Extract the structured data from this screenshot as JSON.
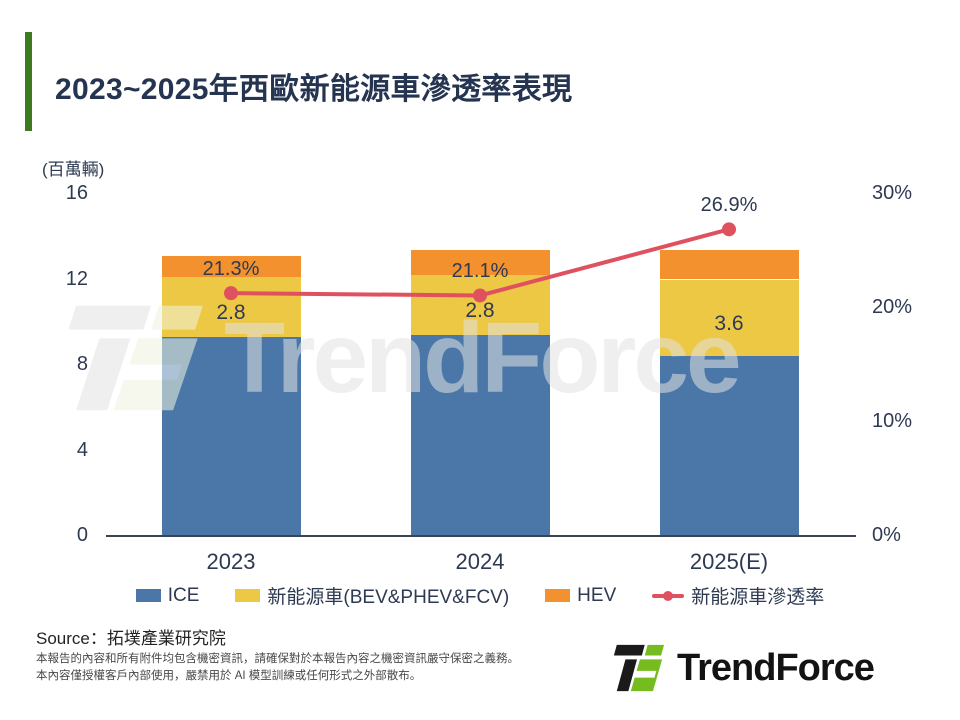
{
  "header": {
    "title": "2023~2025年西歐新能源車滲透率表現"
  },
  "chart_data": {
    "type": "bar",
    "subtype": "stacked-bar-with-line",
    "title": "2023~2025年西歐新能源車滲透率表現",
    "unit_label": "(百萬輛)",
    "categories": [
      "2023",
      "2024",
      "2025(E)"
    ],
    "series": [
      {
        "name": "ICE",
        "type": "bar",
        "color": "#4a77a8",
        "values": [
          9.3,
          9.4,
          8.4
        ]
      },
      {
        "name": "新能源車(BEV&PHEV&FCV)",
        "type": "bar",
        "color": "#edc844",
        "values": [
          2.8,
          2.8,
          3.6
        ],
        "data_labels": [
          "2.8",
          "2.8",
          "3.6"
        ]
      },
      {
        "name": "HEV",
        "type": "bar",
        "color": "#f2912d",
        "values": [
          1.0,
          1.2,
          1.4
        ]
      },
      {
        "name": "新能源車滲透率",
        "type": "line",
        "axis": "right",
        "color": "#e0515f",
        "values": [
          21.3,
          21.1,
          26.9
        ],
        "data_labels": [
          "21.3%",
          "21.1%",
          "26.9%"
        ]
      }
    ],
    "left_axis": {
      "label": "(百萬輛)",
      "ticks": [
        0,
        4,
        8,
        12,
        16
      ],
      "min": 0,
      "max": 16
    },
    "right_axis": {
      "ticks": [
        "0%",
        "10%",
        "20%",
        "30%"
      ],
      "min": 0,
      "max": 30
    },
    "legend_position": "bottom",
    "grid": false
  },
  "legend": [
    {
      "label": "ICE",
      "swatch": "#4a77a8",
      "marker": "square"
    },
    {
      "label": "新能源車(BEV&PHEV&FCV)",
      "swatch": "#edc844",
      "marker": "square"
    },
    {
      "label": "HEV",
      "swatch": "#f2912d",
      "marker": "square"
    },
    {
      "label": "新能源車滲透率",
      "swatch": "#e0515f",
      "marker": "line-dot"
    }
  ],
  "footer": {
    "source": "Source：拓墣產業研究院",
    "disclaimer_line1": "本報告的內容和所有附件均包含機密資訊，請確保對於本報告內容之機密資訊嚴守保密之義務。",
    "disclaimer_line2": "本內容僅授權客戶內部使用，嚴禁用於 AI 模型訓練或任何形式之外部散布。",
    "logo_text": "TrendForce"
  },
  "watermark_text": "TrendForce",
  "colors": {
    "accent_green": "#3e7a1f",
    "title_navy": "#253450",
    "axis_text": "#2e3a52",
    "bar_blue": "#4a77a8",
    "bar_yellow": "#edc844",
    "bar_orange": "#f2912d",
    "line_red": "#e0515f",
    "logo_green": "#76bc21",
    "logo_black": "#1a1a1a",
    "watermark_gray": "#e2e2e2",
    "watermark_green": "#f0f4df"
  }
}
